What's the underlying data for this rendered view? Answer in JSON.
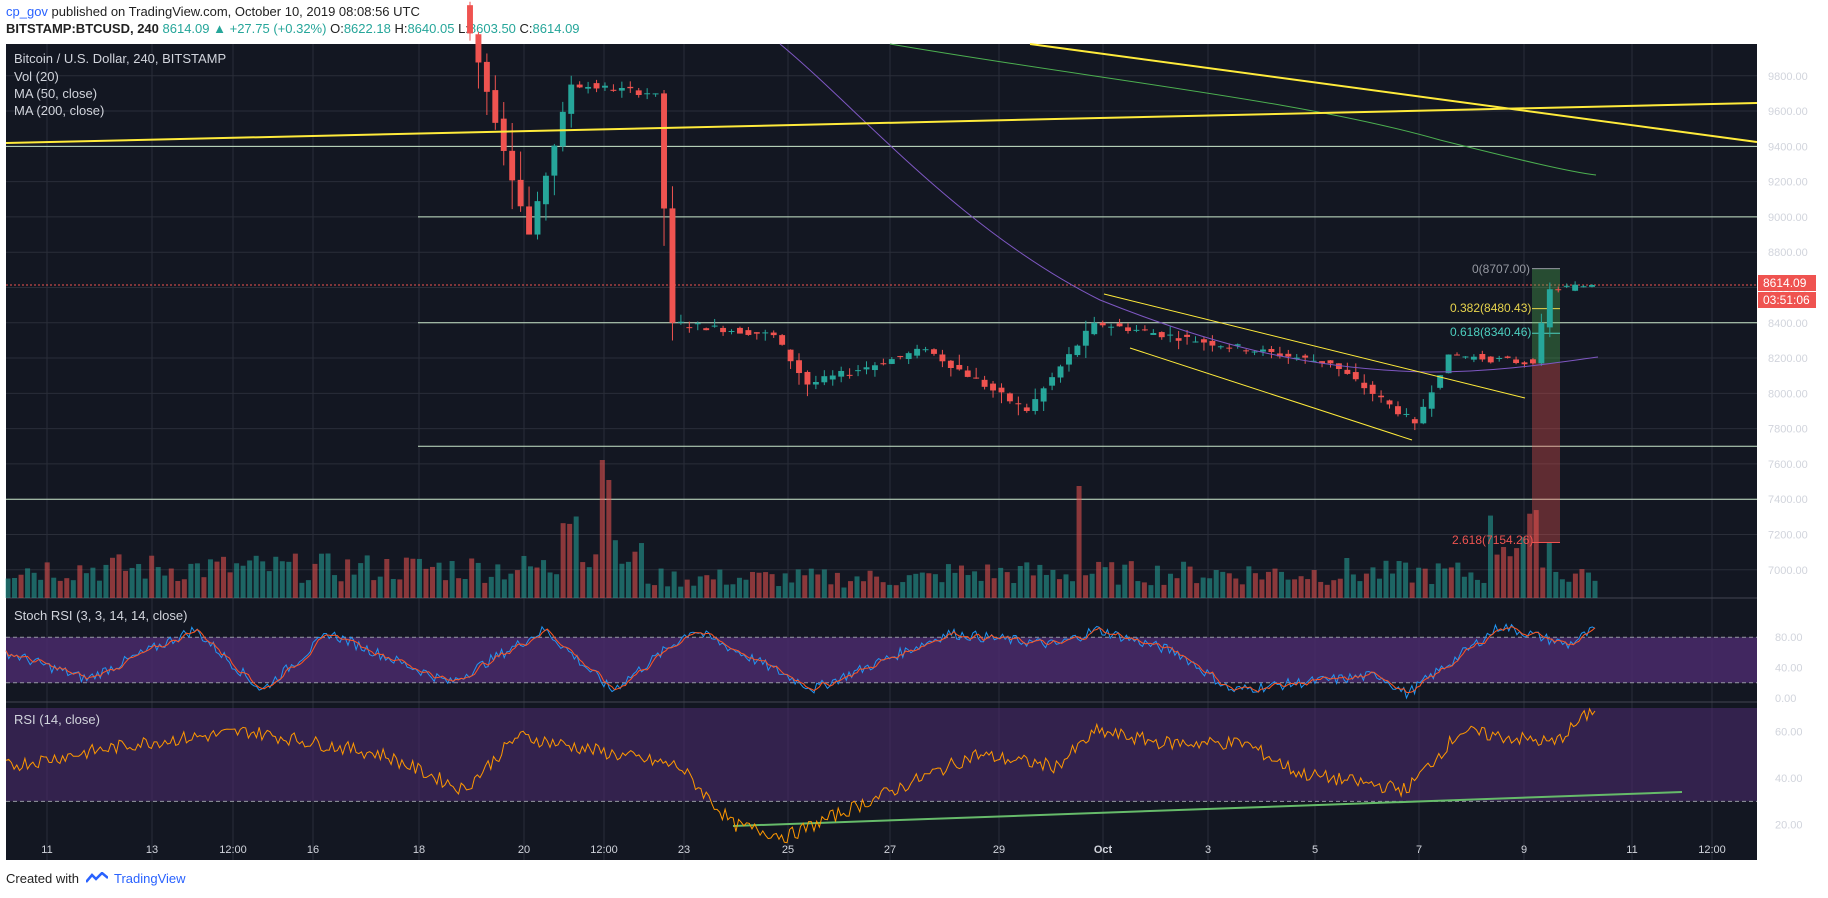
{
  "header": {
    "user": "cp_gov",
    "published_text": "published on TradingView.com, October 10, 2019 08:08:56 UTC",
    "symbol": "BITSTAMP:BTCUSD, 240",
    "change": "8614.09 ▲ +27.75 (+0.32%)",
    "o_label": "O:",
    "o_value": "8622.18",
    "h_label": "H:",
    "h_value": "8640.05",
    "l_label": "L:",
    "l_value": "8603.50",
    "c_label": "C:",
    "c_value": "8614.09"
  },
  "legend": {
    "title": "Bitcoin / U.S. Dollar, 240, BITSTAMP",
    "vol": "Vol (20)",
    "ma50": "MA (50, close)",
    "ma200": "MA (200, close)",
    "stoch_title": "Stoch RSI (3, 3, 14, 14, close)",
    "rsi_title": "RSI (14, close)"
  },
  "price_badge": {
    "price": "8614.09",
    "countdown": "03:51:06"
  },
  "footer": {
    "created": "Created with",
    "brand": "TradingView"
  },
  "colors": {
    "background": "#131722",
    "up": "#26a69a",
    "down": "#ef5350",
    "horizontal_lines": "#c8e6c9",
    "trend_lines": "#ffeb3b",
    "ma50": "#7e57c2",
    "ma200": "#4caf50",
    "stoch_k": "#2196f3",
    "stoch_d": "#ff5722",
    "rsi": "#ff9800",
    "rsi_trend": "#66bb6a",
    "band": "#4a2a6b"
  },
  "chart_data": [
    {
      "type": "candlestick",
      "title": "Bitcoin / U.S. Dollar, 240, BITSTAMP",
      "ylim": [
        6840,
        9980
      ],
      "y_ticks": [
        "7000.00",
        "7200.00",
        "7400.00",
        "7600.00",
        "7800.00",
        "8000.00",
        "8200.00",
        "8400.00",
        "8600.00",
        "8800.00",
        "9000.00",
        "9200.00",
        "9400.00",
        "9600.00",
        "9800.00"
      ],
      "x_ticks": [
        "11",
        "13",
        "12:00",
        "16",
        "18",
        "20",
        "12:00",
        "23",
        "25",
        "27",
        "29",
        "Oct",
        "3",
        "5",
        "7",
        "9",
        "11",
        "12:00"
      ],
      "horizontal_levels": [
        9400,
        9000,
        8400,
        7700,
        7400
      ],
      "current_price": 8614.09,
      "fibonacci": [
        {
          "label": "0(8707.00)",
          "value": 8707.0
        },
        {
          "label": "0.382(8480.43)",
          "value": 8480.43
        },
        {
          "label": "0.618(8340.46)",
          "value": 8340.46
        },
        {
          "label": "2.618(7154.26)",
          "value": 7154.26
        }
      ],
      "segments": [
        {
          "open": 10200,
          "close": 8900,
          "low": 8900,
          "high": 10300,
          "bars": 8
        },
        {
          "open": 8900,
          "close": 9750,
          "low": 8800,
          "high": 9800,
          "bars": 5
        },
        {
          "open": 9750,
          "close": 9700,
          "low": 9550,
          "high": 9900,
          "bars": 10
        },
        {
          "open": 9700,
          "close": 8400,
          "low": 7990,
          "high": 9770,
          "bars": 2
        },
        {
          "open": 8400,
          "close": 8330,
          "low": 8280,
          "high": 8650,
          "bars": 12
        },
        {
          "open": 8330,
          "close": 8050,
          "low": 7740,
          "high": 8350,
          "bars": 4
        },
        {
          "open": 8050,
          "close": 8250,
          "low": 7980,
          "high": 8300,
          "bars": 14
        },
        {
          "open": 8250,
          "close": 7900,
          "low": 7730,
          "high": 8270,
          "bars": 12
        },
        {
          "open": 7900,
          "close": 8400,
          "low": 7880,
          "high": 8510,
          "bars": 8
        },
        {
          "open": 8400,
          "close": 8170,
          "low": 8050,
          "high": 8450,
          "bars": 28
        },
        {
          "open": 8170,
          "close": 7830,
          "low": 7760,
          "high": 8200,
          "bars": 10
        },
        {
          "open": 7830,
          "close": 8220,
          "low": 7820,
          "high": 8260,
          "bars": 4
        },
        {
          "open": 8220,
          "close": 8170,
          "low": 8100,
          "high": 8270,
          "bars": 10
        },
        {
          "open": 8170,
          "close": 8590,
          "low": 8140,
          "high": 8707,
          "bars": 2
        },
        {
          "open": 8590,
          "close": 8614,
          "low": 8520,
          "high": 8680,
          "bars": 5
        }
      ]
    },
    {
      "type": "bar",
      "title": "Vol (20)",
      "segments": [
        {
          "count": 85,
          "base": 30
        },
        {
          "count": 3,
          "base": 120
        },
        {
          "count": 10,
          "base": 40
        },
        {
          "count": 45,
          "base": 20
        },
        {
          "count": 84,
          "base": 25
        },
        {
          "count": 10,
          "base": 60
        },
        {
          "count": 7,
          "base": 25
        }
      ]
    },
    {
      "type": "line",
      "title": "Stoch RSI (3, 3, 14, 14, close)",
      "ylim": [
        0,
        100
      ],
      "y_ticks": [
        "0.00",
        "40.00",
        "80.00"
      ],
      "band": [
        20,
        80
      ],
      "series": [
        {
          "name": "K"
        },
        {
          "name": "D"
        }
      ],
      "anchors": [
        [
          0,
          60
        ],
        [
          30,
          25
        ],
        [
          70,
          90
        ],
        [
          95,
          10
        ],
        [
          120,
          85
        ],
        [
          165,
          20
        ],
        [
          200,
          90
        ],
        [
          225,
          10
        ],
        [
          255,
          90
        ],
        [
          300,
          12
        ],
        [
          350,
          85
        ],
        [
          390,
          70
        ],
        [
          405,
          90
        ],
        [
          435,
          60
        ],
        [
          455,
          10
        ],
        [
          480,
          20
        ],
        [
          510,
          30
        ],
        [
          520,
          5
        ],
        [
          555,
          95
        ],
        [
          580,
          70
        ],
        [
          590,
          90
        ]
      ]
    },
    {
      "type": "line",
      "title": "RSI (14, close)",
      "ylim": [
        10,
        70
      ],
      "y_ticks": [
        "20.00",
        "40.00",
        "60.00"
      ],
      "band": [
        30,
        70
      ],
      "anchors": [
        [
          0,
          45
        ],
        [
          50,
          55
        ],
        [
          90,
          60
        ],
        [
          140,
          50
        ],
        [
          170,
          35
        ],
        [
          190,
          58
        ],
        [
          250,
          45
        ],
        [
          270,
          20
        ],
        [
          290,
          15
        ],
        [
          330,
          35
        ],
        [
          360,
          50
        ],
        [
          390,
          45
        ],
        [
          405,
          60
        ],
        [
          430,
          55
        ],
        [
          460,
          55
        ],
        [
          480,
          42
        ],
        [
          520,
          35
        ],
        [
          540,
          60
        ],
        [
          575,
          55
        ],
        [
          590,
          70
        ]
      ]
    }
  ]
}
